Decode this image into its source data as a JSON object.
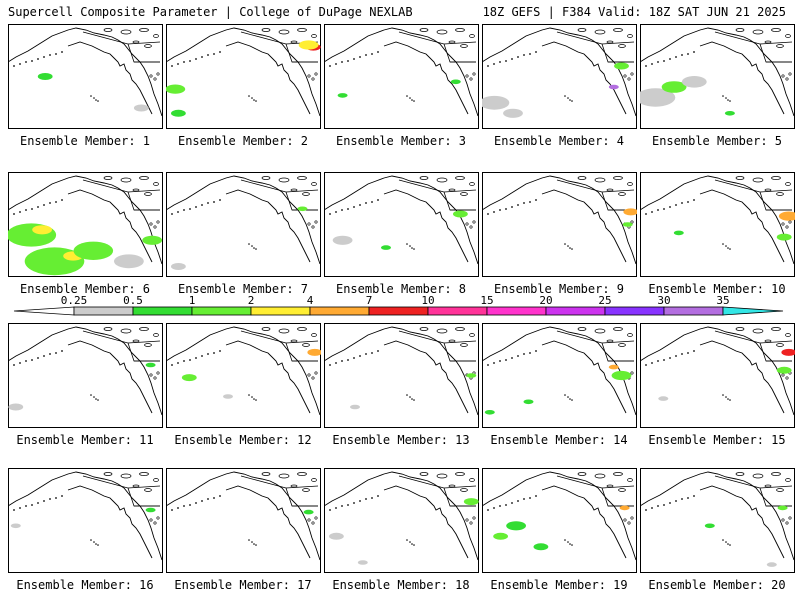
{
  "header": {
    "left": "Supercell Composite Parameter | College of DuPage NEXLAB",
    "right": "18Z GEFS | F384 Valid: 18Z SAT JUN 21 2025"
  },
  "label_prefix": "Ensemble Member: ",
  "members": [
    {
      "number": "1",
      "blobs": [
        [
          0.24,
          0.5,
          0.03,
          "#33dd33"
        ],
        [
          0.86,
          0.8,
          0.03,
          "#cccccc"
        ]
      ]
    },
    {
      "number": "2",
      "blobs": [
        [
          0.95,
          0.22,
          0.03,
          "#ee2222"
        ],
        [
          0.92,
          0.2,
          0.04,
          "#ffee33"
        ],
        [
          0.06,
          0.62,
          0.04,
          "#66ee33"
        ],
        [
          0.08,
          0.85,
          0.03,
          "#33dd33"
        ]
      ]
    },
    {
      "number": "3",
      "blobs": [
        [
          0.12,
          0.68,
          0.02,
          "#33dd33"
        ],
        [
          0.85,
          0.55,
          0.02,
          "#33dd33"
        ]
      ]
    },
    {
      "number": "4",
      "blobs": [
        [
          0.9,
          0.4,
          0.03,
          "#66ee33"
        ],
        [
          0.08,
          0.75,
          0.06,
          "#cccccc"
        ],
        [
          0.2,
          0.85,
          0.04,
          "#cccccc"
        ],
        [
          0.85,
          0.6,
          0.02,
          "#b36ee0"
        ]
      ]
    },
    {
      "number": "5",
      "blobs": [
        [
          0.1,
          0.7,
          0.08,
          "#cccccc"
        ],
        [
          0.22,
          0.6,
          0.05,
          "#66ee33"
        ],
        [
          0.35,
          0.55,
          0.05,
          "#cccccc"
        ],
        [
          0.58,
          0.85,
          0.02,
          "#33dd33"
        ]
      ]
    },
    {
      "number": "6",
      "blobs": [
        [
          0.15,
          0.6,
          0.1,
          "#66ee33"
        ],
        [
          0.22,
          0.55,
          0.04,
          "#ffee33"
        ],
        [
          0.3,
          0.85,
          0.12,
          "#66ee33"
        ],
        [
          0.42,
          0.8,
          0.04,
          "#ffee33"
        ],
        [
          0.55,
          0.75,
          0.08,
          "#66ee33"
        ],
        [
          0.78,
          0.85,
          0.06,
          "#cccccc"
        ],
        [
          0.93,
          0.65,
          0.04,
          "#66ee33"
        ]
      ]
    },
    {
      "number": "7",
      "blobs": [
        [
          0.08,
          0.9,
          0.03,
          "#cccccc"
        ],
        [
          0.88,
          0.35,
          0.02,
          "#66ee33"
        ]
      ]
    },
    {
      "number": "8",
      "blobs": [
        [
          0.12,
          0.65,
          0.04,
          "#cccccc"
        ],
        [
          0.88,
          0.4,
          0.03,
          "#66ee33"
        ],
        [
          0.4,
          0.72,
          0.02,
          "#33dd33"
        ]
      ]
    },
    {
      "number": "9",
      "blobs": [
        [
          0.96,
          0.38,
          0.03,
          "#ffaa33"
        ],
        [
          0.94,
          0.5,
          0.02,
          "#66ee33"
        ]
      ]
    },
    {
      "number": "10",
      "blobs": [
        [
          0.96,
          0.42,
          0.04,
          "#ffaa33"
        ],
        [
          0.93,
          0.62,
          0.03,
          "#66ee33"
        ],
        [
          0.25,
          0.58,
          0.02,
          "#33dd33"
        ]
      ]
    },
    {
      "number": "11",
      "blobs": [
        [
          0.92,
          0.4,
          0.02,
          "#33dd33"
        ],
        [
          0.05,
          0.8,
          0.03,
          "#cccccc"
        ]
      ]
    },
    {
      "number": "12",
      "blobs": [
        [
          0.96,
          0.28,
          0.03,
          "#ffaa33"
        ],
        [
          0.15,
          0.52,
          0.03,
          "#66ee33"
        ],
        [
          0.4,
          0.7,
          0.02,
          "#cccccc"
        ]
      ]
    },
    {
      "number": "13",
      "blobs": [
        [
          0.95,
          0.5,
          0.02,
          "#66ee33"
        ],
        [
          0.2,
          0.8,
          0.02,
          "#cccccc"
        ]
      ]
    },
    {
      "number": "14",
      "blobs": [
        [
          0.9,
          0.5,
          0.04,
          "#66ee33"
        ],
        [
          0.85,
          0.42,
          0.02,
          "#ffaa33"
        ],
        [
          0.3,
          0.75,
          0.02,
          "#33dd33"
        ],
        [
          0.05,
          0.85,
          0.02,
          "#33dd33"
        ]
      ]
    },
    {
      "number": "15",
      "blobs": [
        [
          0.96,
          0.28,
          0.03,
          "#ee2222"
        ],
        [
          0.93,
          0.45,
          0.03,
          "#66ee33"
        ],
        [
          0.15,
          0.72,
          0.02,
          "#cccccc"
        ]
      ]
    },
    {
      "number": "16",
      "blobs": [
        [
          0.92,
          0.4,
          0.02,
          "#33dd33"
        ],
        [
          0.05,
          0.55,
          0.02,
          "#cccccc"
        ]
      ]
    },
    {
      "number": "17",
      "blobs": [
        [
          0.92,
          0.42,
          0.02,
          "#33dd33"
        ]
      ]
    },
    {
      "number": "18",
      "blobs": [
        [
          0.95,
          0.32,
          0.03,
          "#66ee33"
        ],
        [
          0.08,
          0.65,
          0.03,
          "#cccccc"
        ],
        [
          0.25,
          0.9,
          0.02,
          "#cccccc"
        ]
      ]
    },
    {
      "number": "19",
      "blobs": [
        [
          0.22,
          0.55,
          0.04,
          "#33dd33"
        ],
        [
          0.12,
          0.65,
          0.03,
          "#66ee33"
        ],
        [
          0.38,
          0.75,
          0.03,
          "#33dd33"
        ],
        [
          0.92,
          0.38,
          0.02,
          "#ffaa33"
        ]
      ]
    },
    {
      "number": "20",
      "blobs": [
        [
          0.92,
          0.38,
          0.02,
          "#66ee33"
        ],
        [
          0.45,
          0.55,
          0.02,
          "#33dd33"
        ],
        [
          0.85,
          0.92,
          0.02,
          "#cccccc"
        ]
      ]
    }
  ],
  "legend": {
    "ticks": [
      "0.25",
      "0.5",
      "1",
      "2",
      "4",
      "7",
      "10",
      "15",
      "20",
      "25",
      "30",
      "35"
    ],
    "colors": [
      "#cccccc",
      "#33dd33",
      "#66ee33",
      "#ffee33",
      "#ffaa33",
      "#ee2222",
      "#ff3399",
      "#ff33cc",
      "#cc33ee",
      "#8833ff",
      "#b36ee0",
      "#33e6e6"
    ]
  }
}
